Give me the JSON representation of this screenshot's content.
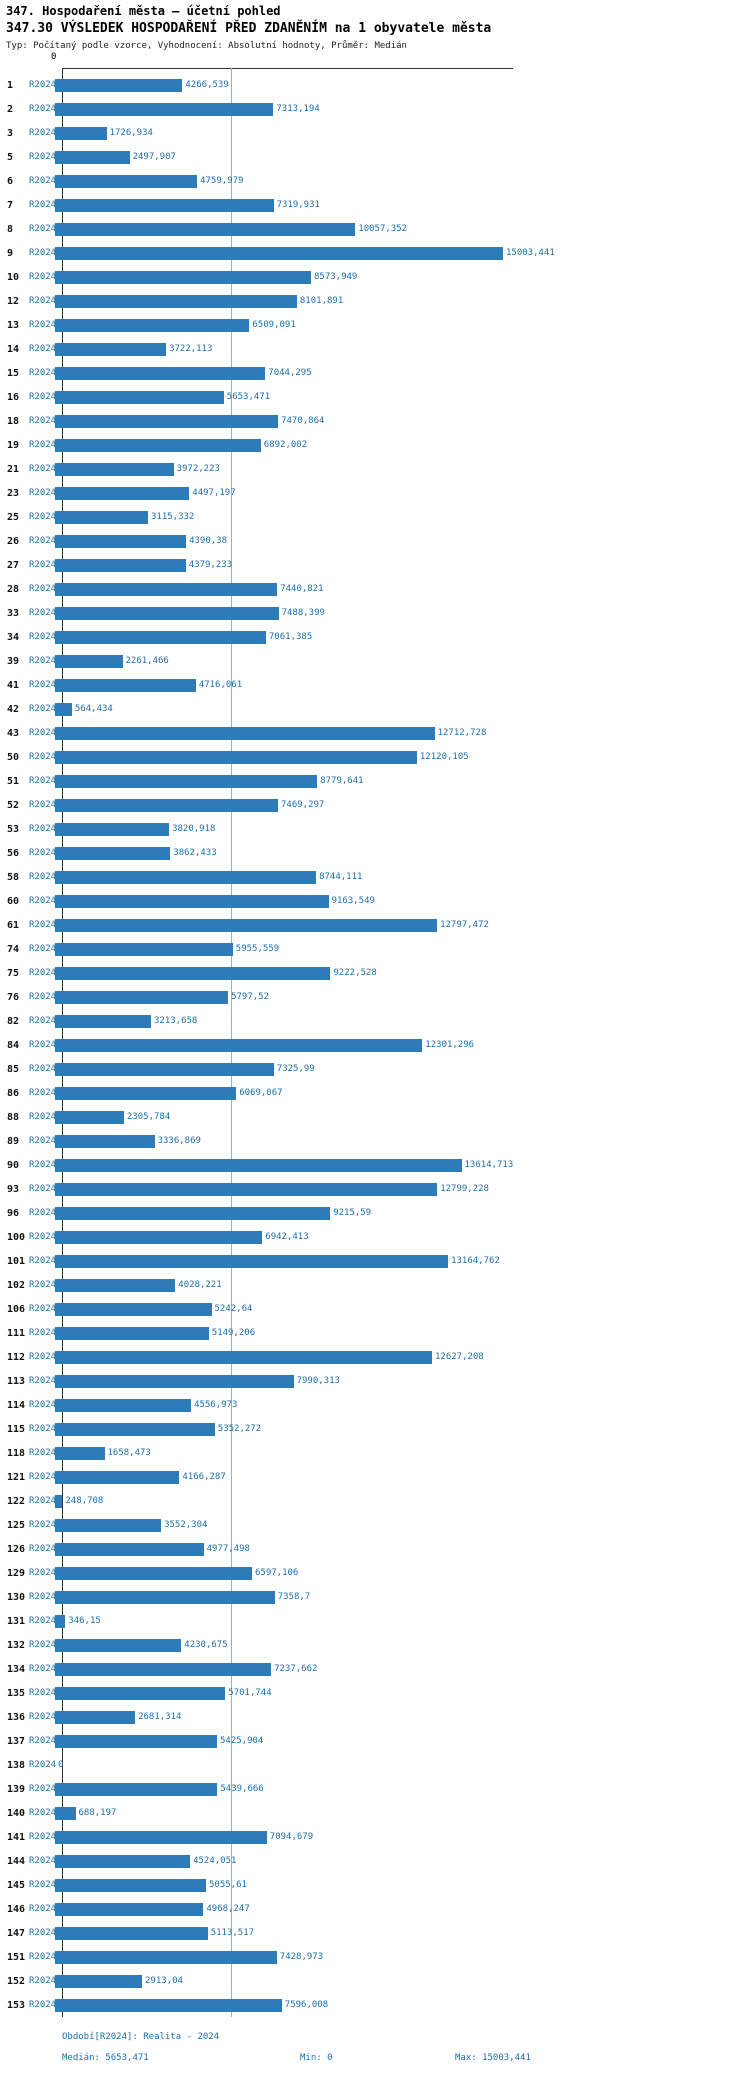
{
  "chart_data": {
    "type": "bar",
    "orientation": "horizontal",
    "title": "347. Hospodaření města – účetní pohled",
    "subtitle": "347.30 VÝSLEDEK HOSPODAŘENÍ PŘED ZDANĚNÍM na 1 obyvatele města",
    "meta": "Typ: Počítaný podle vzorce, Vyhodnocení: Absolutní hodnoty, Průměr: Medián",
    "period_label": "R2024",
    "axis_zero_label": "0",
    "xlim": [
      0,
      15003.441
    ],
    "median": 5653.471,
    "bar_color": "#2d7cb8",
    "label_color": "#1b6fad",
    "legend_position": "none",
    "grid": false,
    "rows": [
      {
        "num": "1",
        "value": "4266,539"
      },
      {
        "num": "2",
        "value": "7313,194"
      },
      {
        "num": "3",
        "value": "1726,934"
      },
      {
        "num": "5",
        "value": "2497,907"
      },
      {
        "num": "6",
        "value": "4759,979"
      },
      {
        "num": "7",
        "value": "7319,931"
      },
      {
        "num": "8",
        "value": "10057,352"
      },
      {
        "num": "9",
        "value": "15003,441"
      },
      {
        "num": "10",
        "value": "8573,949"
      },
      {
        "num": "12",
        "value": "8101,891"
      },
      {
        "num": "13",
        "value": "6509,091"
      },
      {
        "num": "14",
        "value": "3722,113"
      },
      {
        "num": "15",
        "value": "7044,295"
      },
      {
        "num": "16",
        "value": "5653,471"
      },
      {
        "num": "18",
        "value": "7470,864"
      },
      {
        "num": "19",
        "value": "6892,002"
      },
      {
        "num": "21",
        "value": "3972,223"
      },
      {
        "num": "23",
        "value": "4497,197"
      },
      {
        "num": "25",
        "value": "3115,332"
      },
      {
        "num": "26",
        "value": "4390,38"
      },
      {
        "num": "27",
        "value": "4379,233"
      },
      {
        "num": "28",
        "value": "7440,821"
      },
      {
        "num": "33",
        "value": "7488,399"
      },
      {
        "num": "34",
        "value": "7061,385"
      },
      {
        "num": "39",
        "value": "2261,466"
      },
      {
        "num": "41",
        "value": "4716,061"
      },
      {
        "num": "42",
        "value": "564,434"
      },
      {
        "num": "43",
        "value": "12712,728"
      },
      {
        "num": "50",
        "value": "12120,105"
      },
      {
        "num": "51",
        "value": "8779,641"
      },
      {
        "num": "52",
        "value": "7469,297"
      },
      {
        "num": "53",
        "value": "3820,918"
      },
      {
        "num": "56",
        "value": "3862,433"
      },
      {
        "num": "58",
        "value": "8744,111"
      },
      {
        "num": "60",
        "value": "9163,549"
      },
      {
        "num": "61",
        "value": "12797,472"
      },
      {
        "num": "74",
        "value": "5955,559"
      },
      {
        "num": "75",
        "value": "9222,528"
      },
      {
        "num": "76",
        "value": "5797,52"
      },
      {
        "num": "82",
        "value": "3213,658"
      },
      {
        "num": "84",
        "value": "12301,296"
      },
      {
        "num": "85",
        "value": "7325,99"
      },
      {
        "num": "86",
        "value": "6069,067"
      },
      {
        "num": "88",
        "value": "2305,784"
      },
      {
        "num": "89",
        "value": "3336,869"
      },
      {
        "num": "90",
        "value": "13614,713"
      },
      {
        "num": "93",
        "value": "12799,228"
      },
      {
        "num": "96",
        "value": "9215,59"
      },
      {
        "num": "100",
        "value": "6942,413"
      },
      {
        "num": "101",
        "value": "13164,762"
      },
      {
        "num": "102",
        "value": "4028,221"
      },
      {
        "num": "106",
        "value": "5242,64"
      },
      {
        "num": "111",
        "value": "5149,206"
      },
      {
        "num": "112",
        "value": "12627,208"
      },
      {
        "num": "113",
        "value": "7990,313"
      },
      {
        "num": "114",
        "value": "4556,973"
      },
      {
        "num": "115",
        "value": "5352,272"
      },
      {
        "num": "118",
        "value": "1658,473"
      },
      {
        "num": "121",
        "value": "4166,287"
      },
      {
        "num": "122",
        "value": "248,708"
      },
      {
        "num": "125",
        "value": "3552,304"
      },
      {
        "num": "126",
        "value": "4977,498"
      },
      {
        "num": "129",
        "value": "6597,106"
      },
      {
        "num": "130",
        "value": "7358,7"
      },
      {
        "num": "131",
        "value": "346,15"
      },
      {
        "num": "132",
        "value": "4230,675"
      },
      {
        "num": "134",
        "value": "7237,662"
      },
      {
        "num": "135",
        "value": "5701,744"
      },
      {
        "num": "136",
        "value": "2681,314"
      },
      {
        "num": "137",
        "value": "5425,904"
      },
      {
        "num": "138",
        "value": "0"
      },
      {
        "num": "139",
        "value": "5439,666"
      },
      {
        "num": "140",
        "value": "688,197"
      },
      {
        "num": "141",
        "value": "7094,679"
      },
      {
        "num": "144",
        "value": "4524,051"
      },
      {
        "num": "145",
        "value": "5055,61"
      },
      {
        "num": "146",
        "value": "4968,247"
      },
      {
        "num": "147",
        "value": "5113,517"
      },
      {
        "num": "151",
        "value": "7428,973"
      },
      {
        "num": "152",
        "value": "2913,04"
      },
      {
        "num": "153",
        "value": "7596,008"
      }
    ],
    "footer": {
      "period": "Období[R2024]: Realita - 2024",
      "median": "Medián: 5653,471",
      "min": "Min: 0",
      "max": "Max: 15003,441"
    }
  }
}
